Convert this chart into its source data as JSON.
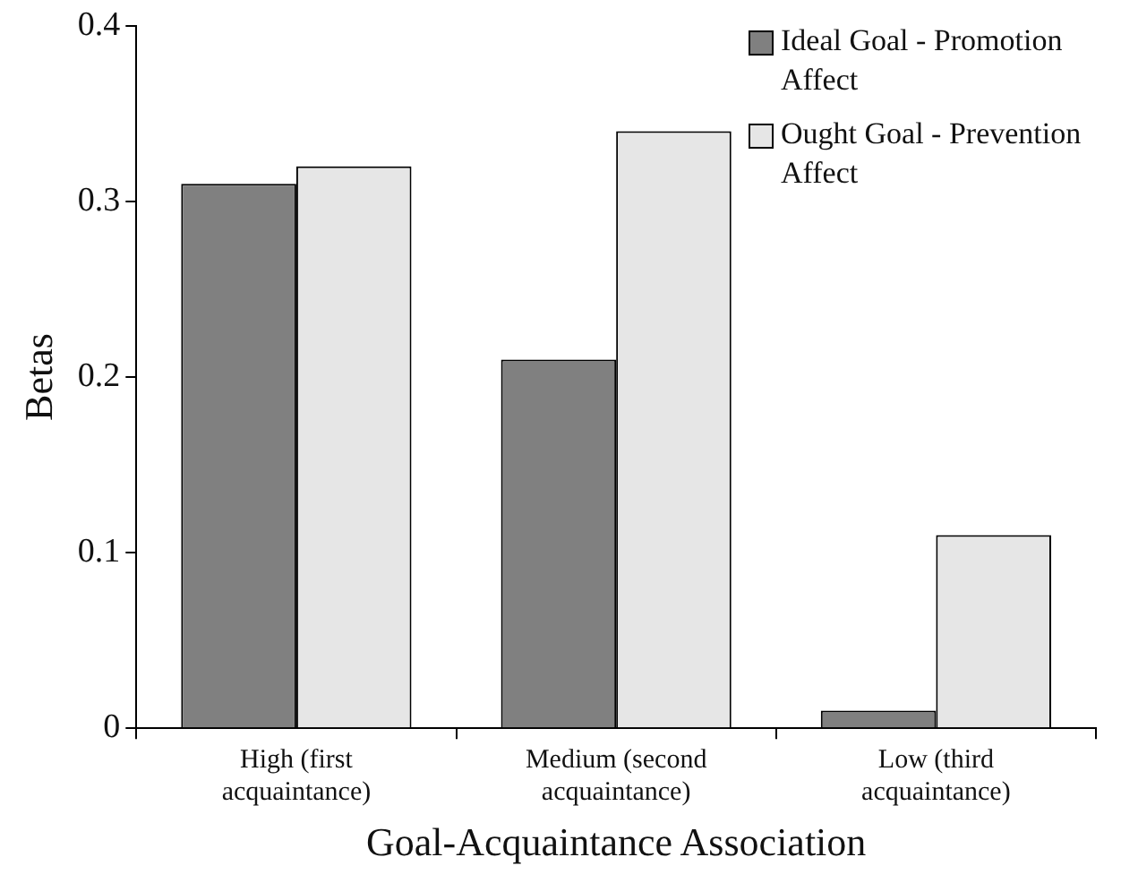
{
  "chart_data": {
    "type": "bar",
    "xlabel": "Goal-Acquaintance Association",
    "ylabel": "Betas",
    "categories": [
      "High (first acquaintance)",
      "Medium (second acquaintance)",
      "Low (third acquaintance)"
    ],
    "series": [
      {
        "name": "Ideal Goal - Promotion Affect",
        "color": "#808080",
        "values": [
          0.31,
          0.21,
          0.01
        ]
      },
      {
        "name": "Ought Goal - Prevention Affect",
        "color": "#e6e6e6",
        "values": [
          0.32,
          0.34,
          0.11
        ]
      }
    ],
    "ylim": [
      0,
      0.4
    ],
    "yticks": [
      0,
      0.1,
      0.2,
      0.3,
      0.4
    ],
    "grid": false,
    "legend": "top right"
  }
}
